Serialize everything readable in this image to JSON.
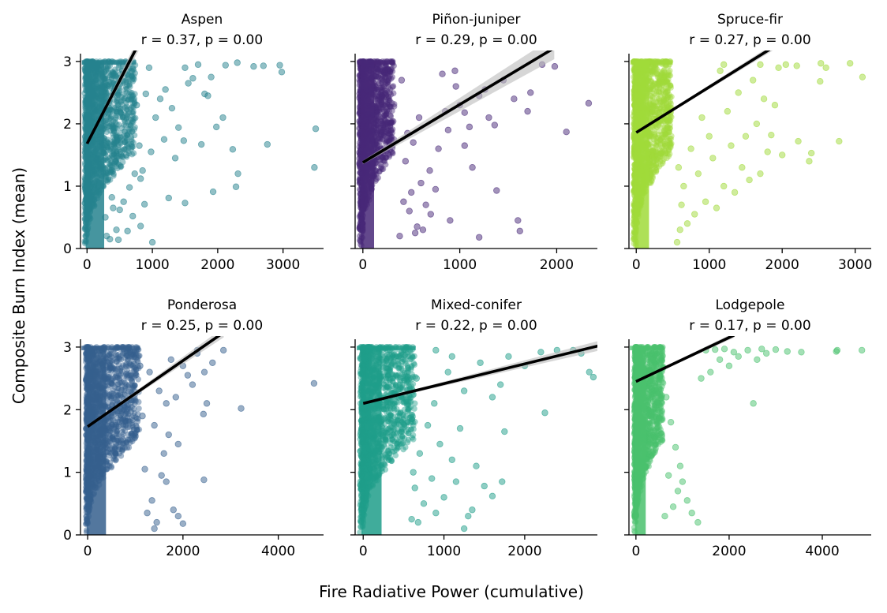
{
  "figure": {
    "xlabel": "Fire Radiative Power (cumulative)",
    "ylabel": "Composite Burn Index (mean)"
  },
  "chart_data": [
    {
      "type": "scatter",
      "title": "Aspen",
      "subtitle": "r = 0.37, p = 0.00",
      "color": "#26828e",
      "xlim": [
        -100,
        3620
      ],
      "ylim": [
        0,
        3.1
      ],
      "xticks": [
        0,
        1000,
        2000,
        3000
      ],
      "yticks": [
        0,
        1,
        2,
        3
      ],
      "fit": {
        "x0": 0,
        "y0": 1.68,
        "x1": 700,
        "y1": 3.1
      },
      "ci_half_width": [
        0.02,
        0.12
      ],
      "dense_region": {
        "x_max": 750
      },
      "points": [
        [
          3500,
          1.92
        ],
        [
          3480,
          1.3
        ],
        [
          2980,
          2.83
        ],
        [
          2950,
          2.94
        ],
        [
          2760,
          1.67
        ],
        [
          2550,
          2.92
        ],
        [
          2310,
          1.2
        ],
        [
          2280,
          0.99
        ],
        [
          2230,
          1.59
        ],
        [
          2120,
          2.94
        ],
        [
          2080,
          2.1
        ],
        [
          1980,
          1.95
        ],
        [
          1930,
          0.91
        ],
        [
          1850,
          2.45
        ],
        [
          1800,
          2.48
        ],
        [
          1750,
          1.67
        ],
        [
          1620,
          2.73
        ],
        [
          1550,
          2.65
        ],
        [
          1500,
          0.73
        ],
        [
          1480,
          1.73
        ],
        [
          1400,
          1.94
        ],
        [
          1350,
          1.45
        ],
        [
          1300,
          2.25
        ],
        [
          1250,
          0.81
        ],
        [
          1200,
          2.55
        ],
        [
          1180,
          1.75
        ],
        [
          1120,
          2.4
        ],
        [
          1050,
          2.1
        ],
        [
          1000,
          0.1
        ],
        [
          980,
          1.55
        ],
        [
          950,
          2.9
        ],
        [
          900,
          2.48
        ],
        [
          880,
          0.71
        ],
        [
          850,
          1.25
        ],
        [
          820,
          1.12
        ],
        [
          800,
          1.65
        ],
        [
          760,
          2.3
        ],
        [
          730,
          1.2
        ],
        [
          700,
          0.52
        ],
        [
          650,
          0.98
        ],
        [
          620,
          0.28
        ],
        [
          600,
          1.5
        ],
        [
          560,
          0.75
        ],
        [
          500,
          0.62
        ],
        [
          480,
          0.14
        ],
        [
          450,
          0.3
        ],
        [
          430,
          1.4
        ],
        [
          400,
          0.65
        ],
        [
          380,
          0.82
        ],
        [
          350,
          0.15
        ],
        [
          300,
          0.2
        ],
        [
          280,
          0.5
        ],
        [
          820,
          0.36
        ],
        [
          1500,
          2.9
        ],
        [
          1700,
          2.95
        ],
        [
          2300,
          2.98
        ],
        [
          2700,
          2.93
        ],
        [
          1900,
          2.75
        ]
      ]
    },
    {
      "type": "scatter",
      "title": "Piñon-juniper",
      "subtitle": "r = 0.29, p = 0.00",
      "color": "#482878",
      "xlim": [
        -80,
        2420
      ],
      "ylim": [
        0,
        3.1
      ],
      "xticks": [
        0,
        1000,
        2000
      ],
      "yticks": [
        0,
        1,
        2,
        3
      ],
      "fit": {
        "x0": 0,
        "y0": 1.38,
        "x1": 1850,
        "y1": 3.1
      },
      "ci_half_width": [
        0.03,
        0.18
      ],
      "dense_region": {
        "x_max": 330
      },
      "points": [
        [
          2330,
          2.33
        ],
        [
          2100,
          1.87
        ],
        [
          1980,
          2.92
        ],
        [
          1850,
          2.95
        ],
        [
          1730,
          2.5
        ],
        [
          1600,
          0.45
        ],
        [
          1620,
          0.28
        ],
        [
          1560,
          2.4
        ],
        [
          1380,
          0.93
        ],
        [
          1360,
          1.98
        ],
        [
          1300,
          2.1
        ],
        [
          1260,
          2.55
        ],
        [
          1200,
          2.45
        ],
        [
          1130,
          1.3
        ],
        [
          1100,
          1.95
        ],
        [
          1050,
          2.18
        ],
        [
          1000,
          2.3
        ],
        [
          960,
          2.6
        ],
        [
          900,
          0.45
        ],
        [
          880,
          1.9
        ],
        [
          850,
          2.2
        ],
        [
          820,
          2.8
        ],
        [
          780,
          1.6
        ],
        [
          750,
          0.95
        ],
        [
          700,
          0.55
        ],
        [
          690,
          1.25
        ],
        [
          650,
          0.7
        ],
        [
          620,
          0.3
        ],
        [
          600,
          1.05
        ],
        [
          580,
          2.1
        ],
        [
          560,
          0.35
        ],
        [
          540,
          0.25
        ],
        [
          520,
          1.7
        ],
        [
          500,
          0.9
        ],
        [
          480,
          0.6
        ],
        [
          460,
          1.85
        ],
        [
          440,
          1.4
        ],
        [
          420,
          0.75
        ],
        [
          400,
          2.7
        ],
        [
          380,
          0.2
        ],
        [
          1050,
          1.65
        ],
        [
          1200,
          0.18
        ],
        [
          950,
          2.85
        ],
        [
          1450,
          2.7
        ],
        [
          1700,
          2.2
        ]
      ]
    },
    {
      "type": "scatter",
      "title": "Spruce-fir",
      "subtitle": "r = 0.27, p = 0.00",
      "color": "#a0da39",
      "xlim": [
        -100,
        3220
      ],
      "ylim": [
        0,
        3.1
      ],
      "xticks": [
        0,
        1000,
        2000,
        3000
      ],
      "yticks": [
        0,
        1,
        2,
        3
      ],
      "fit": {
        "x0": 0,
        "y0": 1.86,
        "x1": 1700,
        "y1": 3.1
      },
      "ci_half_width": [
        0.01,
        0.05
      ],
      "dense_region": {
        "x_max": 500
      },
      "points": [
        [
          3100,
          2.75
        ],
        [
          2930,
          2.97
        ],
        [
          2780,
          1.72
        ],
        [
          2530,
          2.97
        ],
        [
          2520,
          2.68
        ],
        [
          2400,
          1.53
        ],
        [
          2370,
          1.4
        ],
        [
          2220,
          1.72
        ],
        [
          2050,
          2.95
        ],
        [
          2000,
          1.5
        ],
        [
          1950,
          2.9
        ],
        [
          1900,
          2.3
        ],
        [
          1850,
          1.82
        ],
        [
          1800,
          1.55
        ],
        [
          1750,
          2.4
        ],
        [
          1700,
          1.2
        ],
        [
          1650,
          2.0
        ],
        [
          1600,
          2.7
        ],
        [
          1550,
          1.1
        ],
        [
          1500,
          1.8
        ],
        [
          1450,
          1.3
        ],
        [
          1400,
          2.5
        ],
        [
          1350,
          0.9
        ],
        [
          1300,
          1.65
        ],
        [
          1250,
          2.2
        ],
        [
          1200,
          1.0
        ],
        [
          1150,
          2.85
        ],
        [
          1100,
          0.65
        ],
        [
          1050,
          1.45
        ],
        [
          1000,
          1.8
        ],
        [
          950,
          0.75
        ],
        [
          900,
          2.1
        ],
        [
          850,
          1.2
        ],
        [
          800,
          0.55
        ],
        [
          750,
          1.6
        ],
        [
          700,
          0.4
        ],
        [
          650,
          1.0
        ],
        [
          600,
          0.3
        ],
        [
          560,
          0.1
        ],
        [
          620,
          0.7
        ],
        [
          580,
          1.3
        ],
        [
          1200,
          2.95
        ],
        [
          1700,
          2.95
        ],
        [
          2200,
          2.93
        ],
        [
          2600,
          2.9
        ]
      ]
    },
    {
      "type": "scatter",
      "title": "Ponderosa",
      "subtitle": "r = 0.25, p = 0.00",
      "color": "#355f8d",
      "xlim": [
        -150,
        4950
      ],
      "ylim": [
        0,
        3.1
      ],
      "xticks": [
        0,
        2000,
        4000
      ],
      "yticks": [
        0,
        1,
        2,
        3
      ],
      "fit": {
        "x0": 0,
        "y0": 1.73,
        "x1": 2600,
        "y1": 3.1
      },
      "ci_half_width": [
        0.01,
        0.08
      ],
      "dense_region": {
        "x_max": 1100
      },
      "points": [
        [
          4750,
          2.42
        ],
        [
          3220,
          2.02
        ],
        [
          2850,
          2.95
        ],
        [
          2620,
          2.75
        ],
        [
          2450,
          2.6
        ],
        [
          2430,
          1.93
        ],
        [
          2440,
          0.88
        ],
        [
          2300,
          2.9
        ],
        [
          2200,
          2.4
        ],
        [
          2100,
          2.55
        ],
        [
          2000,
          0.18
        ],
        [
          1900,
          0.3
        ],
        [
          1850,
          2.2
        ],
        [
          1800,
          0.4
        ],
        [
          1750,
          2.8
        ],
        [
          1700,
          1.6
        ],
        [
          1650,
          2.1
        ],
        [
          1600,
          1.3
        ],
        [
          1550,
          0.95
        ],
        [
          1500,
          2.3
        ],
        [
          1450,
          0.2
        ],
        [
          1400,
          1.75
        ],
        [
          1350,
          0.55
        ],
        [
          1300,
          2.6
        ],
        [
          1250,
          0.35
        ],
        [
          1200,
          1.05
        ],
        [
          1150,
          1.9
        ],
        [
          1100,
          2.7
        ],
        [
          2500,
          2.1
        ],
        [
          2000,
          2.7
        ],
        [
          1650,
          0.85
        ],
        [
          1900,
          1.45
        ],
        [
          2300,
          2.95
        ],
        [
          1400,
          0.1
        ]
      ]
    },
    {
      "type": "scatter",
      "title": "Mixed-conifer",
      "subtitle": "r = 0.22, p = 0.00",
      "color": "#1f9e89",
      "xlim": [
        -100,
        2900
      ],
      "ylim": [
        0,
        3.1
      ],
      "xticks": [
        0,
        1000,
        2000
      ],
      "yticks": [
        0,
        1,
        2,
        3
      ],
      "fit": {
        "x0": 0,
        "y0": 2.1,
        "x1": 2850,
        "y1": 3.0
      },
      "ci_half_width": [
        0.01,
        0.08
      ],
      "dense_region": {
        "x_max": 650
      },
      "points": [
        [
          2850,
          2.52
        ],
        [
          2800,
          2.6
        ],
        [
          2700,
          2.9
        ],
        [
          2600,
          2.95
        ],
        [
          2400,
          2.95
        ],
        [
          2250,
          1.95
        ],
        [
          2200,
          2.92
        ],
        [
          1750,
          1.65
        ],
        [
          1720,
          0.85
        ],
        [
          1700,
          2.4
        ],
        [
          1600,
          0.62
        ],
        [
          1500,
          0.78
        ],
        [
          1350,
          0.4
        ],
        [
          1300,
          0.3
        ],
        [
          1250,
          2.3
        ],
        [
          1150,
          0.85
        ],
        [
          1100,
          1.2
        ],
        [
          1000,
          0.6
        ],
        [
          1050,
          2.6
        ],
        [
          950,
          1.45
        ],
        [
          900,
          0.35
        ],
        [
          880,
          2.1
        ],
        [
          850,
          0.9
        ],
        [
          800,
          1.75
        ],
        [
          750,
          0.5
        ],
        [
          700,
          1.3
        ],
        [
          680,
          0.2
        ],
        [
          660,
          2.5
        ],
        [
          640,
          0.75
        ],
        [
          620,
          1.0
        ],
        [
          600,
          0.25
        ],
        [
          1450,
          2.75
        ],
        [
          1800,
          2.85
        ],
        [
          2000,
          2.7
        ],
        [
          1200,
          1.7
        ],
        [
          1400,
          1.1
        ],
        [
          1600,
          2.2
        ],
        [
          900,
          2.95
        ],
        [
          1100,
          2.85
        ],
        [
          1250,
          0.1
        ]
      ]
    },
    {
      "type": "scatter",
      "title": "Lodgepole",
      "subtitle": "r = 0.17, p = 0.00",
      "color": "#4ac16d",
      "xlim": [
        -150,
        5050
      ],
      "ylim": [
        0,
        3.1
      ],
      "xticks": [
        0,
        2000,
        4000
      ],
      "yticks": [
        0,
        1,
        2,
        3
      ],
      "fit": {
        "x0": 0,
        "y0": 2.45,
        "x1": 1850,
        "y1": 3.1
      },
      "ci_half_width": [
        0.01,
        0.04
      ],
      "dense_region": {
        "x_max": 600
      },
      "points": [
        [
          4850,
          2.95
        ],
        [
          4320,
          2.95
        ],
        [
          4300,
          2.93
        ],
        [
          3550,
          2.92
        ],
        [
          3250,
          2.93
        ],
        [
          3000,
          2.96
        ],
        [
          2800,
          2.9
        ],
        [
          2600,
          2.8
        ],
        [
          2520,
          2.1
        ],
        [
          2400,
          2.95
        ],
        [
          2200,
          2.85
        ],
        [
          2100,
          2.92
        ],
        [
          2000,
          2.7
        ],
        [
          1800,
          2.8
        ],
        [
          1600,
          2.6
        ],
        [
          1400,
          2.5
        ],
        [
          1330,
          0.2
        ],
        [
          1200,
          0.35
        ],
        [
          1100,
          0.55
        ],
        [
          1000,
          0.85
        ],
        [
          950,
          1.1
        ],
        [
          900,
          0.7
        ],
        [
          850,
          1.4
        ],
        [
          800,
          0.45
        ],
        [
          750,
          1.8
        ],
        [
          700,
          0.95
        ],
        [
          650,
          2.2
        ],
        [
          620,
          0.3
        ],
        [
          1500,
          2.95
        ],
        [
          1700,
          2.96
        ],
        [
          1900,
          2.97
        ],
        [
          2700,
          2.97
        ]
      ]
    }
  ]
}
